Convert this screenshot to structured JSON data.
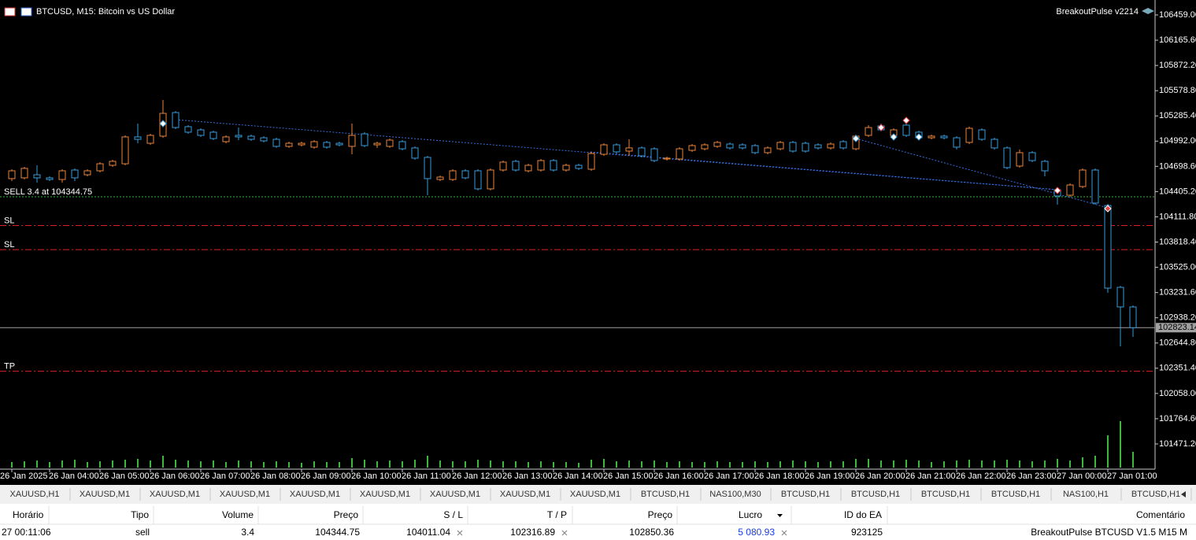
{
  "header": {
    "symbol_title": "BTCUSD, M15:  Bitcoin vs US Dollar",
    "ea_name": "BreakoutPulse v2214"
  },
  "chart_data": {
    "type": "candlestick",
    "bull_color": "#e8843c",
    "bear_color": "#3a9ad9",
    "volume_color": "#3cb83c",
    "ylim": [
      101178,
      106633
    ],
    "yticks": [
      {
        "value": 106459,
        "label": "106459.00"
      },
      {
        "value": 106165.6,
        "label": "106165.60"
      },
      {
        "value": 105872.2,
        "label": "105872.20"
      },
      {
        "value": 105578.8,
        "label": "105578.80"
      },
      {
        "value": 105285.4,
        "label": "105285.40"
      },
      {
        "value": 104992,
        "label": "104992.00"
      },
      {
        "value": 104698.6,
        "label": "104698.60"
      },
      {
        "value": 104405.2,
        "label": "104405.20"
      },
      {
        "value": 104111.8,
        "label": "104111.80"
      },
      {
        "value": 103818.4,
        "label": "103818.40"
      },
      {
        "value": 103525,
        "label": "103525.00"
      },
      {
        "value": 103231.6,
        "label": "103231.60"
      },
      {
        "value": 102938.2,
        "label": "102938.20"
      },
      {
        "value": 102644.8,
        "label": "102644.80"
      },
      {
        "value": 102351.4,
        "label": "102351.40"
      },
      {
        "value": 102058,
        "label": "102058.00"
      },
      {
        "value": 101764.6,
        "label": "101764.60"
      },
      {
        "value": 101471.2,
        "label": "101471.20"
      }
    ],
    "categories": [
      "26 Jan 2025",
      null,
      null,
      "26 Jan 04:00",
      null,
      null,
      null,
      "26 Jan 05:00",
      null,
      null,
      null,
      "26 Jan 06:00",
      null,
      null,
      null,
      "26 Jan 07:00",
      null,
      null,
      null,
      "26 Jan 08:00",
      null,
      null,
      null,
      "26 Jan 09:00",
      null,
      null,
      null,
      "26 Jan 10:00",
      null,
      null,
      null,
      "26 Jan 11:00",
      null,
      null,
      null,
      "26 Jan 12:00",
      null,
      null,
      null,
      "26 Jan 13:00",
      null,
      null,
      null,
      "26 Jan 14:00",
      null,
      null,
      null,
      "26 Jan 15:00",
      null,
      null,
      null,
      "26 Jan 16:00",
      null,
      null,
      null,
      "26 Jan 17:00",
      null,
      null,
      null,
      "26 Jan 18:00",
      null,
      null,
      null,
      "26 Jan 19:00",
      null,
      null,
      null,
      "26 Jan 20:00",
      null,
      null,
      null,
      "26 Jan 21:00",
      null,
      null,
      null,
      "26 Jan 22:00",
      null,
      null,
      null,
      "26 Jan 23:00",
      null,
      null,
      null,
      "27 Jan 00:00",
      null,
      null,
      null,
      "27 Jan 01:00",
      null,
      null
    ],
    "ohlc": [
      [
        104556,
        104665,
        104528,
        104647
      ],
      [
        104565,
        104693,
        104547,
        104675
      ],
      [
        104601,
        104711,
        104510,
        104565
      ],
      [
        104565,
        104583,
        104528,
        104546
      ],
      [
        104546,
        104665,
        104510,
        104647
      ],
      [
        104656,
        104674,
        104528,
        104565
      ],
      [
        104601,
        104665,
        104583,
        104647
      ],
      [
        104647,
        104748,
        104629,
        104729
      ],
      [
        104711,
        104775,
        104693,
        104757
      ],
      [
        104729,
        105059,
        104711,
        105041
      ],
      [
        105041,
        105196,
        104967,
        105013
      ],
      [
        104967,
        105077,
        104949,
        105059
      ],
      [
        105050,
        105471,
        105031,
        105315
      ],
      [
        105324,
        105342,
        105132,
        105150
      ],
      [
        105160,
        105178,
        105077,
        105096
      ],
      [
        105123,
        105141,
        105041,
        105059
      ],
      [
        105096,
        105114,
        105004,
        105022
      ],
      [
        104986,
        105059,
        104967,
        105041
      ],
      [
        105059,
        105150,
        105004,
        105041
      ],
      [
        105050,
        105068,
        104995,
        105013
      ],
      [
        105031,
        105050,
        104977,
        104995
      ],
      [
        105013,
        105031,
        104913,
        104931
      ],
      [
        104931,
        104986,
        104913,
        104967
      ],
      [
        104949,
        104986,
        104931,
        104967
      ],
      [
        104922,
        105004,
        104904,
        104986
      ],
      [
        104977,
        104995,
        104904,
        104922
      ],
      [
        104967,
        104986,
        104931,
        104949
      ],
      [
        104931,
        105196,
        104839,
        105059
      ],
      [
        105077,
        105096,
        104922,
        104940
      ],
      [
        104949,
        104986,
        104913,
        104967
      ],
      [
        104931,
        105022,
        104913,
        105004
      ],
      [
        104986,
        105004,
        104885,
        104903
      ],
      [
        104913,
        104931,
        104775,
        104794
      ],
      [
        104803,
        104821,
        104363,
        104556
      ],
      [
        104546,
        104592,
        104528,
        104574
      ],
      [
        104546,
        104665,
        104528,
        104647
      ],
      [
        104647,
        104665,
        104547,
        104565
      ],
      [
        104647,
        104665,
        104419,
        104437
      ],
      [
        104437,
        104674,
        104419,
        104656
      ],
      [
        104656,
        104766,
        104638,
        104748
      ],
      [
        104757,
        104775,
        104638,
        104656
      ],
      [
        104647,
        104729,
        104629,
        104711
      ],
      [
        104656,
        104784,
        104638,
        104766
      ],
      [
        104766,
        104784,
        104638,
        104656
      ],
      [
        104656,
        104729,
        104638,
        104711
      ],
      [
        104711,
        104729,
        104656,
        104675
      ],
      [
        104665,
        104866,
        104647,
        104848
      ],
      [
        104839,
        104967,
        104821,
        104949
      ],
      [
        104949,
        104967,
        104848,
        104867
      ],
      [
        104876,
        105013,
        104821,
        104913
      ],
      [
        104913,
        104931,
        104803,
        104821
      ],
      [
        104903,
        104922,
        104748,
        104766
      ],
      [
        104784,
        104812,
        104766,
        104794
      ],
      [
        104784,
        104922,
        104766,
        104903
      ],
      [
        104885,
        104958,
        104867,
        104940
      ],
      [
        104903,
        104967,
        104885,
        104949
      ],
      [
        104931,
        104995,
        104913,
        104977
      ],
      [
        104958,
        104977,
        104894,
        104913
      ],
      [
        104949,
        104967,
        104894,
        104913
      ],
      [
        104940,
        104958,
        104839,
        104858
      ],
      [
        104858,
        104931,
        104839,
        104913
      ],
      [
        104903,
        104995,
        104885,
        104977
      ],
      [
        104977,
        104995,
        104858,
        104876
      ],
      [
        104967,
        104986,
        104858,
        104876
      ],
      [
        104949,
        104967,
        104894,
        104913
      ],
      [
        104913,
        104977,
        104894,
        104958
      ],
      [
        104986,
        105004,
        104894,
        104913
      ],
      [
        104903,
        105068,
        104885,
        105050
      ],
      [
        105059,
        105178,
        105041,
        105150
      ],
      [
        105169,
        105196,
        105104,
        105123
      ],
      [
        105059,
        105141,
        105041,
        105123
      ],
      [
        105178,
        105196,
        105041,
        105059
      ],
      [
        105096,
        105114,
        105013,
        105031
      ],
      [
        105031,
        105068,
        105013,
        105050
      ],
      [
        105050,
        105068,
        105013,
        105031
      ],
      [
        105031,
        105050,
        104894,
        104922
      ],
      [
        104977,
        105160,
        104958,
        105141
      ],
      [
        105123,
        105141,
        104995,
        105013
      ],
      [
        105013,
        105031,
        104894,
        104913
      ],
      [
        104913,
        104931,
        104665,
        104684
      ],
      [
        104702,
        104894,
        104684,
        104858
      ],
      [
        104858,
        104876,
        104748,
        104766
      ],
      [
        104757,
        104775,
        104583,
        104647
      ],
      [
        104427,
        104455,
        104254,
        104354
      ],
      [
        104363,
        104500,
        104345,
        104482
      ],
      [
        104464,
        104674,
        104446,
        104656
      ],
      [
        104656,
        104674,
        104254,
        104272
      ],
      [
        104244,
        104262,
        103229,
        103283
      ],
      [
        103292,
        103310,
        102606,
        103064
      ],
      [
        103064,
        103082,
        102716,
        102823.14
      ]
    ],
    "volume_ylim": [
      0,
      6000
    ],
    "volumes": [
      700,
      800,
      900,
      700,
      900,
      1000,
      700,
      800,
      900,
      1000,
      1100,
      900,
      1500,
      1000,
      900,
      800,
      900,
      700,
      900,
      800,
      700,
      800,
      700,
      600,
      800,
      700,
      700,
      1200,
      1000,
      800,
      900,
      800,
      1000,
      1500,
      900,
      800,
      800,
      1000,
      900,
      800,
      800,
      700,
      800,
      700,
      700,
      600,
      1000,
      1100,
      800,
      900,
      800,
      900,
      700,
      800,
      700,
      700,
      800,
      700,
      700,
      800,
      700,
      800,
      900,
      800,
      700,
      800,
      800,
      1100,
      1100,
      900,
      900,
      1000,
      900,
      700,
      800,
      900,
      1000,
      900,
      900,
      1000,
      900,
      800,
      900,
      1100,
      900,
      1300,
      1500,
      4100,
      5900,
      2000
    ],
    "levels": [
      {
        "label": "SELL 3.4 at 104344.75",
        "value": 104344.75,
        "color": "#3cb83c",
        "style": "dotted"
      },
      {
        "label": "SL",
        "value": 104011.04,
        "color": "#e02020",
        "style": "dashdot"
      },
      {
        "label": "SL",
        "value": 103731,
        "color": "#e02020",
        "style": "dashdot"
      },
      {
        "label": "TP",
        "value": 102316.89,
        "color": "#e02020",
        "style": "dashdot"
      }
    ],
    "last_price": 102823.14
  },
  "tabs": [
    "XAUUSD,H1",
    "XAUUSD,M1",
    "XAUUSD,M1",
    "XAUUSD,M1",
    "XAUUSD,M1",
    "XAUUSD,M1",
    "XAUUSD,M1",
    "XAUUSD,M1",
    "XAUUSD,M1",
    "BTCUSD,H1",
    "NAS100,M30",
    "BTCUSD,H1",
    "BTCUSD,H1",
    "BTCUSD,H1",
    "BTCUSD,H1",
    "NAS100,H1",
    "BTCUSD,H1"
  ],
  "table": {
    "columns": [
      "Horário",
      "Tipo",
      "Volume",
      "Preço",
      "S / L",
      "T / P",
      "Preço",
      "Lucro",
      "ID do EA",
      "Comentário"
    ],
    "rows": [
      [
        "27 00:11:06",
        "sell",
        "3.4",
        "104344.75",
        "104011.04",
        "102316.89",
        "102850.36",
        "5 080.93",
        "923125",
        "BreakoutPulse BTCUSD V1.5 M15 M"
      ]
    ]
  }
}
